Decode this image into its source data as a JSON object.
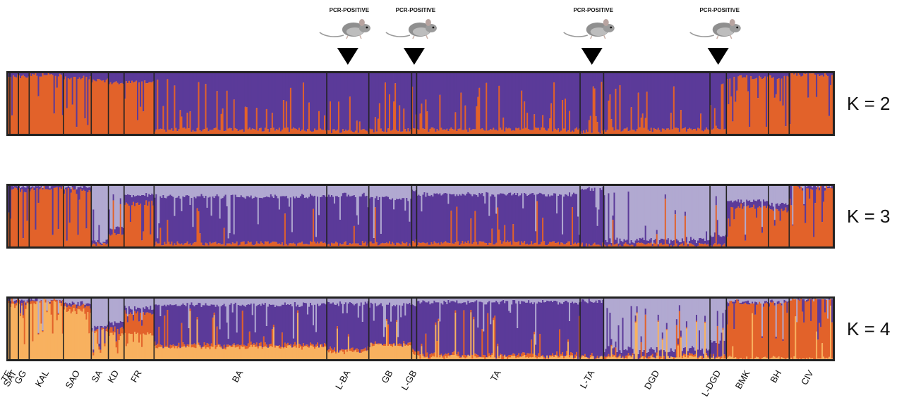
{
  "chart_data": {
    "type": "bar",
    "subtype": "stacked-admixture",
    "colors": {
      "orange": "#e2622a",
      "purple": "#5b3a99",
      "lavender": "#b1a9d1",
      "light_orange": "#f8b15f",
      "frame": "#222222",
      "bg": "#ffffff"
    },
    "markers": {
      "label": "PCR-POSITIVE",
      "populations": [
        "L-BA",
        "L-GB",
        "L-TA",
        "L-DGD"
      ]
    },
    "populations": [
      {
        "name": "TE",
        "weight": 2
      },
      {
        "name": "SAT",
        "weight": 12
      },
      {
        "name": "GG",
        "weight": 15
      },
      {
        "name": "KAL",
        "weight": 48
      },
      {
        "name": "SAO",
        "weight": 39
      },
      {
        "name": "SA",
        "weight": 24
      },
      {
        "name": "KD",
        "weight": 22
      },
      {
        "name": "FR",
        "weight": 42
      },
      {
        "name": "BA",
        "weight": 242
      },
      {
        "name": "L-BA",
        "weight": 59
      },
      {
        "name": "GB",
        "weight": 60
      },
      {
        "name": "L-GB",
        "weight": 7
      },
      {
        "name": "TA",
        "weight": 229
      },
      {
        "name": "L-TA",
        "weight": 33
      },
      {
        "name": "DGD",
        "weight": 149
      },
      {
        "name": "L-DGD",
        "weight": 23
      },
      {
        "name": "BMK",
        "weight": 59
      },
      {
        "name": "BH",
        "weight": 29
      },
      {
        "name": "CIV",
        "weight": 61
      }
    ],
    "panels": [
      {
        "label": "K = 2",
        "k": 2,
        "series_colors": [
          "orange",
          "purple"
        ],
        "composition": {
          "TE": [
            0.95,
            0.05
          ],
          "SAT": [
            0.95,
            0.05
          ],
          "GG": [
            0.95,
            0.05
          ],
          "KAL": [
            0.97,
            0.03
          ],
          "SAO": [
            0.93,
            0.07
          ],
          "SA": [
            0.88,
            0.12
          ],
          "KD": [
            0.85,
            0.15
          ],
          "FR": [
            0.85,
            0.15
          ],
          "BA": [
            0.07,
            0.93
          ],
          "L-BA": [
            0.05,
            0.95
          ],
          "GB": [
            0.06,
            0.94
          ],
          "L-GB": [
            0.1,
            0.9
          ],
          "TA": [
            0.07,
            0.93
          ],
          "L-TA": [
            0.04,
            0.96
          ],
          "DGD": [
            0.07,
            0.93
          ],
          "L-DGD": [
            0.1,
            0.9
          ],
          "BMK": [
            0.93,
            0.07
          ],
          "BH": [
            0.93,
            0.07
          ],
          "CIV": [
            0.98,
            0.02
          ]
        }
      },
      {
        "label": "K = 3",
        "k": 3,
        "series_colors": [
          "orange",
          "purple",
          "lavender"
        ],
        "composition": {
          "TE": [
            0.95,
            0.05,
            0.0
          ],
          "SAT": [
            0.95,
            0.05,
            0.0
          ],
          "GG": [
            0.95,
            0.05,
            0.0
          ],
          "KAL": [
            0.97,
            0.03,
            0.0
          ],
          "SAO": [
            0.93,
            0.05,
            0.02
          ],
          "SA": [
            0.05,
            0.05,
            0.9
          ],
          "KD": [
            0.2,
            0.1,
            0.7
          ],
          "FR": [
            0.7,
            0.15,
            0.15
          ],
          "BA": [
            0.05,
            0.78,
            0.17
          ],
          "L-BA": [
            0.05,
            0.8,
            0.15
          ],
          "GB": [
            0.05,
            0.75,
            0.2
          ],
          "L-GB": [
            0.1,
            0.8,
            0.1
          ],
          "TA": [
            0.06,
            0.8,
            0.14
          ],
          "L-TA": [
            0.03,
            0.92,
            0.05
          ],
          "DGD": [
            0.03,
            0.07,
            0.9
          ],
          "L-DGD": [
            0.03,
            0.15,
            0.82
          ],
          "BMK": [
            0.65,
            0.1,
            0.25
          ],
          "BH": [
            0.6,
            0.1,
            0.3
          ],
          "CIV": [
            0.98,
            0.02,
            0.0
          ]
        }
      },
      {
        "label": "K = 4",
        "k": 4,
        "series_colors": [
          "light_orange",
          "orange",
          "purple",
          "lavender"
        ],
        "composition": {
          "TE": [
            0.9,
            0.05,
            0.02,
            0.03
          ],
          "SAT": [
            0.9,
            0.05,
            0.02,
            0.03
          ],
          "GG": [
            0.9,
            0.05,
            0.02,
            0.03
          ],
          "KAL": [
            0.95,
            0.02,
            0.01,
            0.02
          ],
          "SAO": [
            0.8,
            0.08,
            0.04,
            0.08
          ],
          "SA": [
            0.45,
            0.05,
            0.05,
            0.45
          ],
          "KD": [
            0.4,
            0.1,
            0.1,
            0.4
          ],
          "FR": [
            0.4,
            0.35,
            0.1,
            0.15
          ],
          "BA": [
            0.2,
            0.04,
            0.66,
            0.1
          ],
          "L-BA": [
            0.12,
            0.04,
            0.76,
            0.08
          ],
          "GB": [
            0.22,
            0.03,
            0.65,
            0.1
          ],
          "L-GB": [
            0.1,
            0.05,
            0.75,
            0.1
          ],
          "TA": [
            0.03,
            0.04,
            0.87,
            0.06
          ],
          "L-TA": [
            0.02,
            0.02,
            0.92,
            0.04
          ],
          "DGD": [
            0.03,
            0.02,
            0.1,
            0.85
          ],
          "L-DGD": [
            0.02,
            0.03,
            0.25,
            0.7
          ],
          "BMK": [
            0.02,
            0.9,
            0.03,
            0.05
          ],
          "BH": [
            0.02,
            0.9,
            0.03,
            0.05
          ],
          "CIV": [
            0.01,
            0.98,
            0.0,
            0.01
          ]
        }
      }
    ]
  }
}
